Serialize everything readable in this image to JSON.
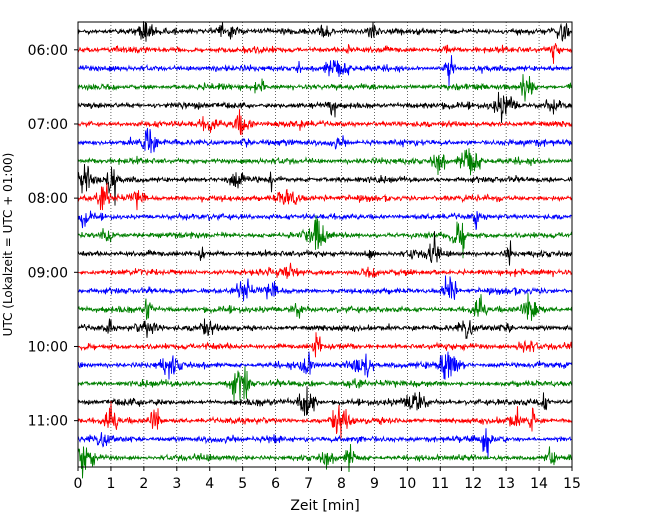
{
  "chart_data": {
    "type": "line",
    "title": "",
    "xlabel": "Zeit  [min]",
    "ylabel": "UTC (Lokalzeit = UTC + 01:00)",
    "xlim": [
      0,
      15
    ],
    "x_ticks": [
      "0",
      "1",
      "2",
      "3",
      "4",
      "5",
      "6",
      "7",
      "8",
      "9",
      "10",
      "11",
      "12",
      "13",
      "14",
      "15"
    ],
    "y_tick_labels": [
      "06:00",
      "07:00",
      "08:00",
      "09:00",
      "10:00",
      "11:00"
    ],
    "row_start": "05:45",
    "row_step_minutes": 15,
    "row_count": 24,
    "color_cycle": [
      "#000000",
      "#ff0000",
      "#0000ff",
      "#008000"
    ],
    "grid": "vertical-dotted",
    "legend": "none"
  }
}
